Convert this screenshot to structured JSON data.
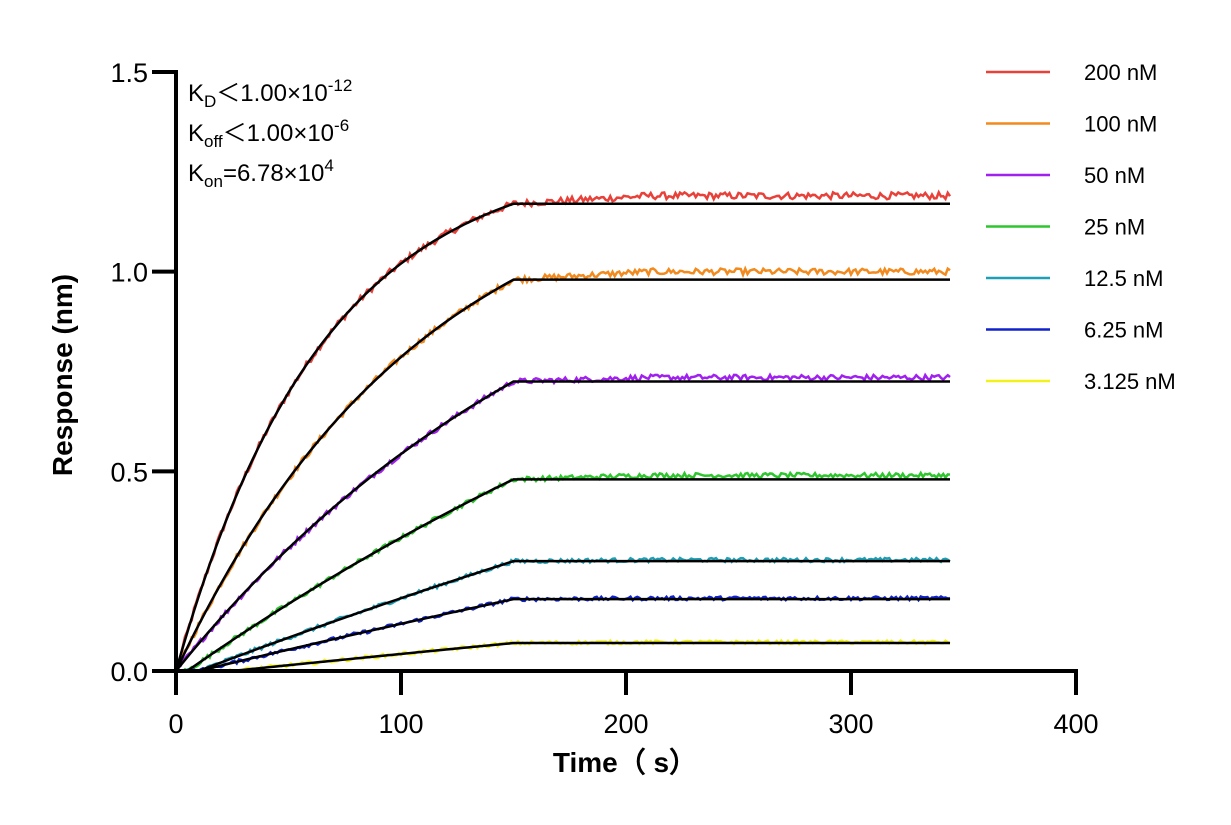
{
  "chart_data": {
    "type": "line",
    "xlabel": "Time（ s）",
    "ylabel": "Response (nm)",
    "xlim": [
      0,
      400
    ],
    "ylim": [
      0,
      1.5
    ],
    "x_ticks": [
      "0",
      "100",
      "200",
      "300",
      "400"
    ],
    "y_ticks": [
      "0.0",
      "0.5",
      "1.0",
      "1.5"
    ],
    "grid": false,
    "legend_position": "top-right",
    "annotations": {
      "kd": {
        "main": "K",
        "sub": "D",
        "rest": "＜1.00×10",
        "sup": "-12"
      },
      "koff": {
        "main": "K",
        "sub": "off",
        "rest": "＜1.00×10",
        "sup": "-6"
      },
      "kon": {
        "main": "K",
        "sub": "on",
        "rest": "=6.78×10",
        "sup": "4"
      }
    },
    "association_end": 150,
    "time_end": 344,
    "series": [
      {
        "name": "200 nM",
        "color": "#e8413a",
        "plateau": 1.17,
        "tau": 65,
        "onset": 0,
        "end_value": 1.19
      },
      {
        "name": "100 nM",
        "color": "#f28a1e",
        "plateau": 0.98,
        "tau": 110,
        "onset": 0,
        "end_value": 1.0
      },
      {
        "name": "50 nM",
        "color": "#a020f0",
        "plateau": 0.725,
        "tau": 190,
        "onset": 0,
        "end_value": 0.735
      },
      {
        "name": "25 nM",
        "color": "#2ec52e",
        "plateau": 0.48,
        "tau": 400,
        "onset": 5,
        "end_value": 0.49
      },
      {
        "name": "12.5 nM",
        "color": "#1f9fb5",
        "plateau": 0.275,
        "tau": 800,
        "onset": 10,
        "end_value": 0.278
      },
      {
        "name": "6.25 nM",
        "color": "#1122cc",
        "plateau": 0.18,
        "tau": 1200,
        "onset": 10,
        "end_value": 0.182
      },
      {
        "name": "3.125 nM",
        "color": "#f2f21a",
        "plateau": 0.07,
        "tau": 1500,
        "onset": 25,
        "end_value": 0.072
      }
    ],
    "fit_color": "#000000"
  }
}
